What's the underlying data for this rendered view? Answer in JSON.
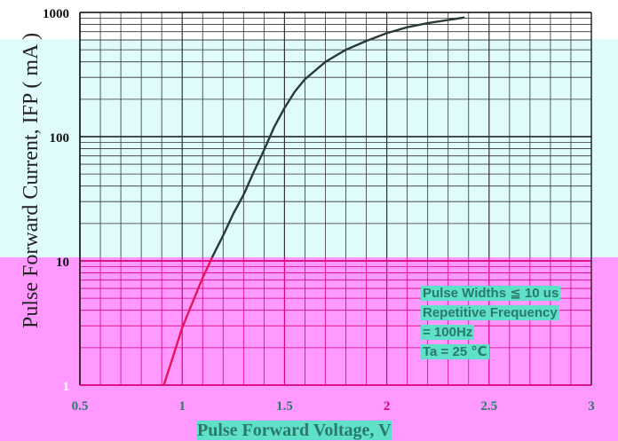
{
  "chart_data": {
    "type": "line",
    "title": "",
    "xlabel": "Pulse Forward Voltage, V",
    "ylabel": "Pulse Forward Current, IFP ( mA )",
    "x_scale": "linear",
    "y_scale": "log",
    "xlim": [
      0.5,
      3
    ],
    "ylim": [
      1,
      1000
    ],
    "x_ticks": [
      "0.5",
      "1",
      "1.5",
      "2",
      "2.5",
      "3"
    ],
    "y_ticks": [
      {
        "value": 1,
        "label": "1"
      },
      {
        "value": 10,
        "label": "10"
      },
      {
        "value": 100,
        "label": "100"
      },
      {
        "value": 1000,
        "label": "1000"
      }
    ],
    "grid": true,
    "series": [
      {
        "x": [
          0.91,
          0.96,
          1.0,
          1.05,
          1.1,
          1.15,
          1.2,
          1.25,
          1.3,
          1.35,
          1.4,
          1.45,
          1.5,
          1.55,
          1.6,
          1.7,
          1.8,
          1.9,
          2.0,
          2.1,
          2.2,
          2.3,
          2.38
        ],
        "y": [
          1.0,
          1.8,
          2.9,
          4.6,
          7.3,
          11,
          16,
          24,
          34,
          52,
          78,
          120,
          170,
          230,
          290,
          400,
          500,
          590,
          680,
          760,
          820,
          870,
          910
        ]
      }
    ],
    "annotation": {
      "lines": [
        "Pulse Widths ≦ 10 us",
        "Repetitive Frequency",
        "= 100Hz",
        "Ta = 25 ℃"
      ]
    },
    "colors": {
      "band_cyan": "#dffbfb",
      "band_magenta": "#ff99ff",
      "curve_upper": "#2a3a3a",
      "curve_lower": "#e8145a",
      "grid_dark": "#333333",
      "grid_magenta": "#d8007a",
      "label_teal": "#2a7a6a"
    }
  }
}
